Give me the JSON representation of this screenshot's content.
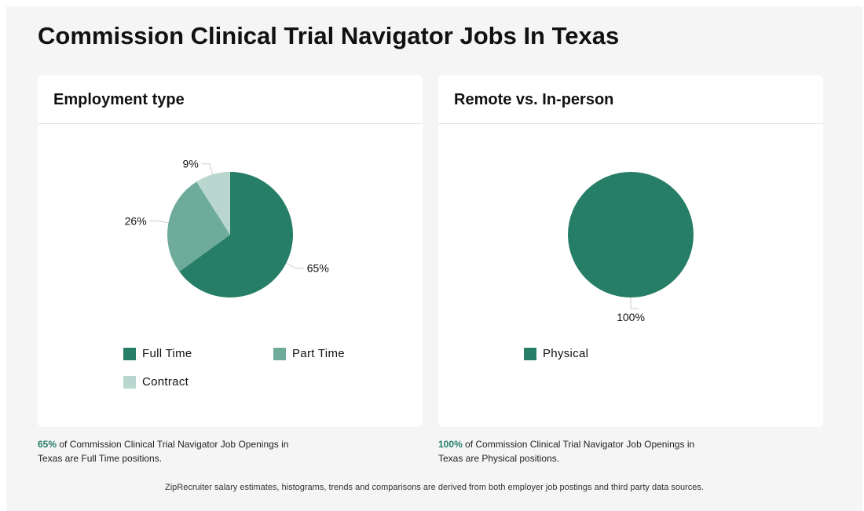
{
  "page": {
    "title": "Commission Clinical Trial Navigator Jobs In Texas"
  },
  "charts": {
    "employment": {
      "header": "Employment type",
      "caption_pct": "65%",
      "caption_text": " of Commission Clinical Trial Navigator Job Openings in Texas are Full Time positions.",
      "legend": [
        {
          "label": "Full Time",
          "color": "#267e67"
        },
        {
          "label": "Part Time",
          "color": "#6eab9a"
        },
        {
          "label": "Contract",
          "color": "#bad7cf"
        }
      ]
    },
    "remote": {
      "header": "Remote vs. In-person",
      "caption_pct": "100%",
      "caption_text": " of Commission Clinical Trial Navigator Job Openings in Texas are Physical positions.",
      "legend": [
        {
          "label": "Physical",
          "color": "#267e67"
        }
      ]
    }
  },
  "footer": {
    "text": "ZipRecruiter salary estimates, histograms, trends and comparisons are derived from both employer job postings and third party data sources."
  },
  "chart_data": [
    {
      "type": "pie",
      "title": "Employment type",
      "categories": [
        "Full Time",
        "Part Time",
        "Contract"
      ],
      "values": [
        65,
        26,
        9
      ],
      "labels": [
        "65%",
        "26%",
        "9%"
      ],
      "colors": [
        "#267e67",
        "#6eab9a",
        "#bad7cf"
      ],
      "legend": "bottom"
    },
    {
      "type": "pie",
      "title": "Remote vs. In-person",
      "categories": [
        "Physical"
      ],
      "values": [
        100
      ],
      "labels": [
        "100%"
      ],
      "colors": [
        "#267e67"
      ],
      "legend": "bottom"
    }
  ]
}
